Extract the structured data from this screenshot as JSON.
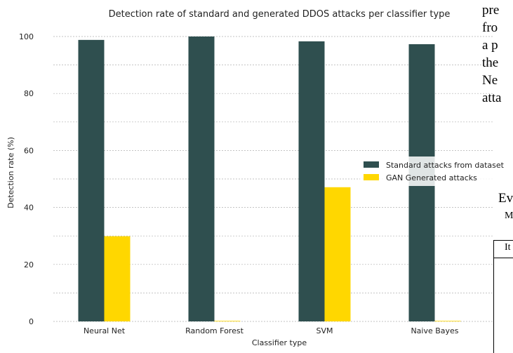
{
  "chart_data": {
    "type": "bar",
    "title": "Detection rate of standard and generated DDOS attacks per classifier type",
    "xlabel": "Classifier type",
    "ylabel": "Detection rate (%)",
    "categories": [
      "Neural Net",
      "Random Forest",
      "SVM",
      "Naive Bayes"
    ],
    "series": [
      {
        "name": "Standard attacks from dataset",
        "values": [
          98.8,
          100.0,
          98.3,
          97.3
        ]
      },
      {
        "name": "GAN Generated attacks",
        "values": [
          29.9,
          0.2,
          47.1,
          0.2
        ]
      }
    ],
    "ylim": [
      0,
      100
    ],
    "yticks": [
      0,
      20,
      40,
      60,
      80,
      100
    ],
    "grid": true,
    "legend_position": "right"
  },
  "colors": {
    "standard": "#2f4f4f",
    "gan": "#ffd700",
    "grid": "#b0b0b0"
  },
  "side_text": {
    "line1": "pre",
    "line2": "fro",
    "line3": "a  p",
    "line4": "the",
    "line5": "Ne",
    "line6": "atta",
    "line7": "Ev",
    "line8": "M",
    "table_header": "It"
  }
}
